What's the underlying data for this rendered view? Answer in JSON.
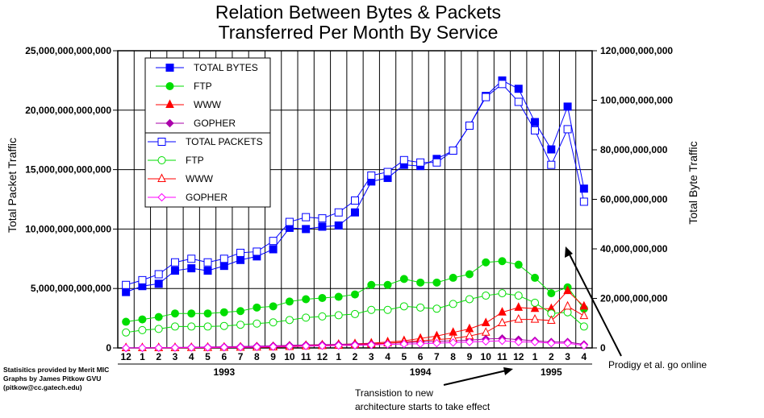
{
  "chart_data": {
    "type": "line",
    "title_lines": [
      "Relation Between Bytes & Packets",
      "Transferred Per Month By Service"
    ],
    "ylabel_left": "Total Packet Traffic",
    "ylabel_right": "Total Byte Traffic",
    "left_ticks": [
      "25,000,000,000,000",
      "20,000,000,000,000",
      "15,000,000,000,000",
      "10,000,000,000,000",
      "5,000,000,000,000",
      "0"
    ],
    "right_ticks": [
      "120,000,000,000",
      "100,000,000,000",
      "80,000,000,000",
      "60,000,000,000",
      "40,000,000,000",
      "20,000,000,000",
      "0"
    ],
    "left_ylim": [
      0,
      25000000000000
    ],
    "right_ylim": [
      0,
      120000000000
    ],
    "categories": [
      "12",
      "1",
      "2",
      "3",
      "4",
      "5",
      "6",
      "7",
      "8",
      "9",
      "10",
      "11",
      "12",
      "1",
      "2",
      "3",
      "4",
      "5",
      "6",
      "7",
      "8",
      "9",
      "10",
      "11",
      "12",
      "1",
      "2",
      "3",
      "4"
    ],
    "year_labels": [
      {
        "label": "1993",
        "at_index": 6
      },
      {
        "label": "1994",
        "at_index": 18
      },
      {
        "label": "1995",
        "at_index": 26
      }
    ],
    "grid": "vertical and horizontal",
    "legend_position": "top-left",
    "series": [
      {
        "name": "TOTAL BYTES",
        "marker": "square-filled",
        "color": "#0000ff",
        "values": [
          4700,
          5200,
          5400,
          6500,
          6700,
          6500,
          6900,
          7400,
          7700,
          8300,
          10100,
          10000,
          10200,
          10300,
          11400,
          14000,
          14300,
          15400,
          15300,
          15900,
          16600,
          18700,
          21200,
          22500,
          21800,
          19000,
          16700,
          20300,
          13400
        ]
      },
      {
        "name": "FTP",
        "marker": "circle-filled",
        "color": "#00dd00",
        "values": [
          2200,
          2400,
          2600,
          2900,
          2900,
          2900,
          3000,
          3100,
          3400,
          3500,
          3900,
          4100,
          4200,
          4300,
          4500,
          5300,
          5300,
          5800,
          5500,
          5500,
          5900,
          6200,
          7200,
          7300,
          7000,
          5900,
          4600,
          5100,
          3300
        ]
      },
      {
        "name": "WWW",
        "marker": "triangle-filled",
        "color": "#ff0000",
        "values": [
          0,
          0,
          10,
          20,
          30,
          40,
          50,
          60,
          80,
          100,
          150,
          200,
          250,
          300,
          350,
          400,
          500,
          600,
          800,
          1000,
          1300,
          1600,
          2100,
          3000,
          3400,
          3300,
          3300,
          4800,
          3500
        ]
      },
      {
        "name": "GOPHER",
        "marker": "diamond-filled",
        "color": "#aa00aa",
        "values": [
          0,
          10,
          20,
          40,
          60,
          80,
          100,
          120,
          150,
          180,
          220,
          250,
          280,
          300,
          320,
          350,
          400,
          450,
          500,
          550,
          600,
          650,
          750,
          800,
          700,
          600,
          500,
          500,
          300
        ]
      },
      {
        "name": "TOTAL PACKETS",
        "marker": "square-open",
        "color": "#0000ff",
        "values": [
          5300,
          5700,
          6200,
          7200,
          7500,
          7200,
          7500,
          8000,
          8100,
          9000,
          10600,
          11000,
          10900,
          11400,
          12400,
          14500,
          14800,
          15800,
          15600,
          15600,
          16600,
          18700,
          21100,
          22200,
          20700,
          18300,
          15400,
          18400,
          12300
        ]
      },
      {
        "name": "FTP",
        "marker": "circle-open",
        "color": "#00dd00",
        "values": [
          1300,
          1500,
          1600,
          1800,
          1800,
          1800,
          1850,
          1950,
          2050,
          2150,
          2350,
          2550,
          2650,
          2750,
          2850,
          3200,
          3200,
          3500,
          3400,
          3300,
          3700,
          4100,
          4400,
          4600,
          4400,
          3800,
          2900,
          3000,
          1800
        ]
      },
      {
        "name": "WWW",
        "marker": "triangle-open",
        "color": "#ff0000",
        "values": [
          0,
          0,
          5,
          10,
          15,
          20,
          30,
          40,
          50,
          70,
          100,
          150,
          180,
          200,
          250,
          300,
          400,
          500,
          600,
          700,
          800,
          1000,
          1300,
          2100,
          2400,
          2400,
          2300,
          3500,
          2700
        ]
      },
      {
        "name": "GOPHER",
        "marker": "diamond-open",
        "color": "#ff00ff",
        "values": [
          0,
          5,
          10,
          20,
          30,
          40,
          50,
          60,
          80,
          100,
          130,
          160,
          180,
          200,
          220,
          250,
          300,
          330,
          350,
          400,
          450,
          500,
          550,
          600,
          500,
          500,
          400,
          400,
          200
        ]
      }
    ]
  },
  "credits": [
    "Statisitics provided by Merit MIC",
    "Graphs by James  Pitkow  GVU",
    "(pitkow@cc.gatech.edu)"
  ],
  "annotations": {
    "transition_line1": "Transistion to new",
    "transition_line2": "architecture starts to take effect",
    "prodigy": "Prodigy et al. go online"
  }
}
